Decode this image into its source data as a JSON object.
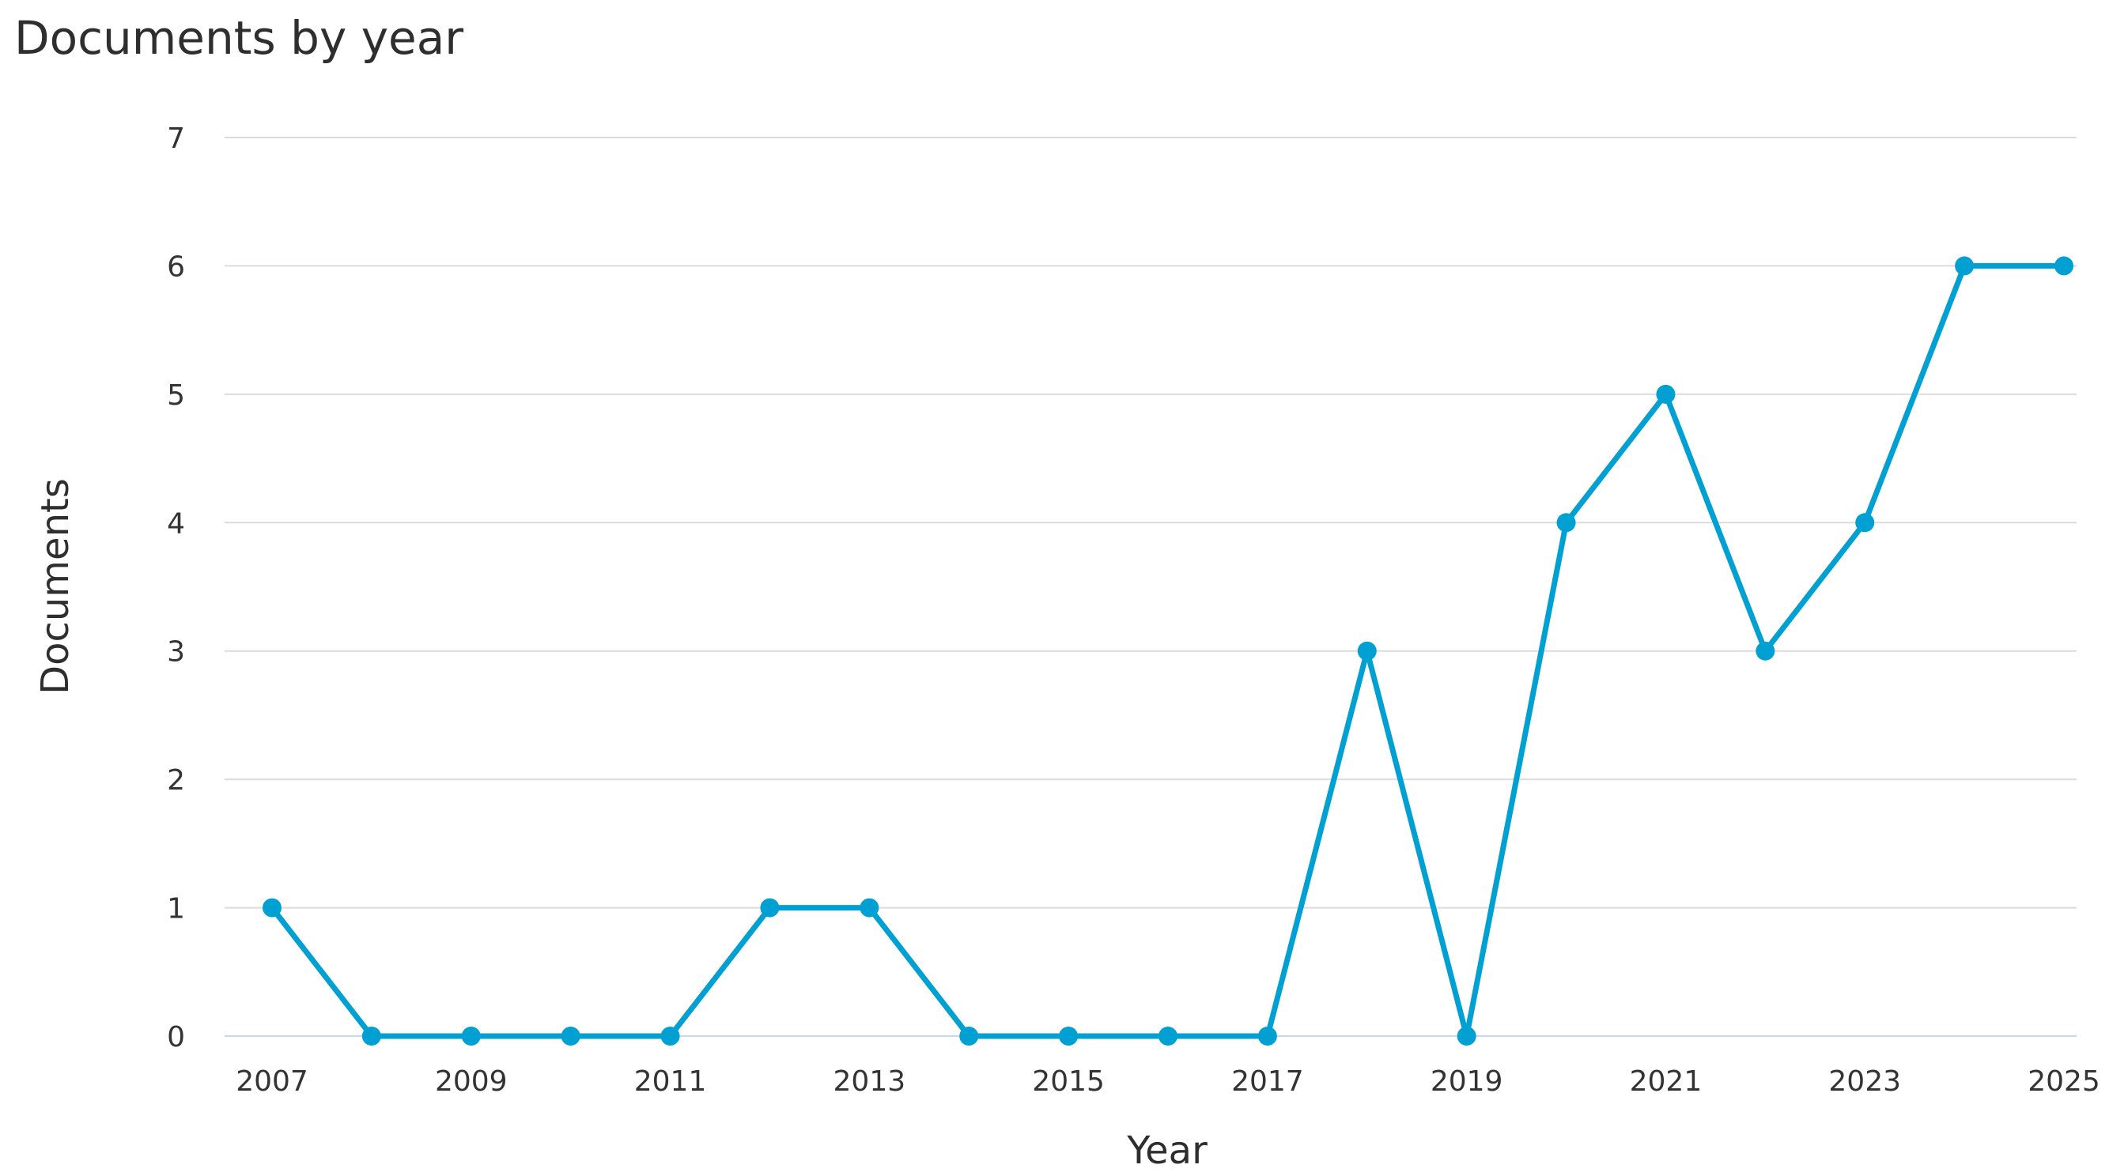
{
  "chart_data": {
    "type": "line",
    "title": "Documents by year",
    "xlabel": "Year",
    "ylabel": "Documents",
    "x": [
      2007,
      2008,
      2009,
      2010,
      2011,
      2012,
      2013,
      2014,
      2015,
      2016,
      2017,
      2018,
      2019,
      2020,
      2021,
      2022,
      2023,
      2024,
      2025
    ],
    "series": [
      {
        "values": [
          1,
          0,
          0,
          0,
          0,
          1,
          1,
          0,
          0,
          0,
          0,
          3,
          0,
          4,
          5,
          3,
          4,
          6,
          6
        ],
        "color": "#00a0d2"
      }
    ],
    "xticks": [
      "2007",
      "2009",
      "2011",
      "2013",
      "2015",
      "2017",
      "2019",
      "2021",
      "2023",
      "2025"
    ],
    "yticks": [
      "0",
      "1",
      "2",
      "3",
      "4",
      "5",
      "6",
      "7"
    ],
    "xlim": [
      2007,
      2025
    ],
    "ylim": [
      0,
      7
    ],
    "grid": true,
    "legend": "none"
  }
}
